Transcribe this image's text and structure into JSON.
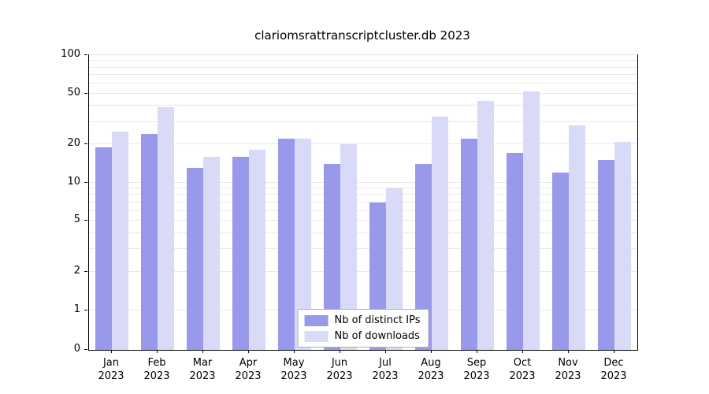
{
  "chart_data": {
    "type": "bar",
    "title": "clariomsrattranscriptcluster.db 2023",
    "categories": [
      "Jan",
      "Feb",
      "Mar",
      "Apr",
      "May",
      "Jun",
      "Jul",
      "Aug",
      "Sep",
      "Oct",
      "Nov",
      "Dec"
    ],
    "category_year": "2023",
    "series": [
      {
        "name": "Nb of distinct IPs",
        "color": "#9999ec",
        "values": [
          19,
          24,
          13,
          16,
          22,
          14,
          7,
          14,
          22,
          17,
          12,
          15
        ]
      },
      {
        "name": "Nb of downloads",
        "color": "#d9d9f8",
        "values": [
          25,
          39,
          16,
          18,
          22,
          20,
          9,
          33,
          44,
          52,
          28,
          21
        ]
      }
    ],
    "yticks": [
      0,
      1,
      2,
      5,
      10,
      20,
      50,
      100
    ],
    "ylim": [
      0,
      100
    ],
    "yscale": "log-with-zero-baseline",
    "grid": "horizontal-minor-log",
    "legend_position": "bottom-center"
  }
}
